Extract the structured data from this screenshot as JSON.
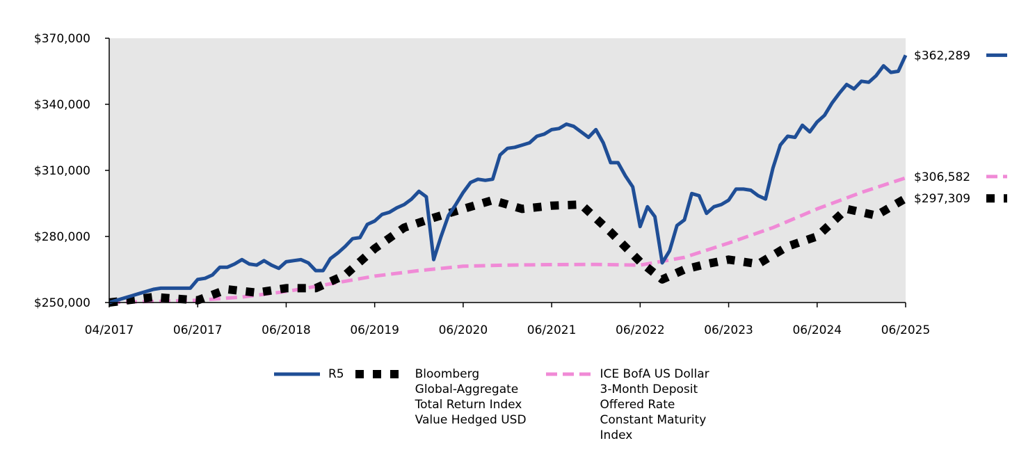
{
  "chart_data": {
    "type": "line",
    "title": "",
    "xlabel": "",
    "ylabel": "",
    "ylim": [
      250000,
      370000
    ],
    "y_ticks": [
      "$250,000",
      "$280,000",
      "$310,000",
      "$340,000",
      "$370,000"
    ],
    "y_tick_values": [
      250000,
      280000,
      310000,
      340000,
      370000
    ],
    "x_ticks": [
      "04/2017",
      "06/2017",
      "06/2018",
      "06/2019",
      "06/2020",
      "06/2021",
      "06/2022",
      "06/2023",
      "06/2024",
      "06/2025"
    ],
    "x_tick_values": [
      0,
      12,
      24,
      36,
      48,
      60,
      72,
      84,
      96,
      108
    ],
    "background_color": "#e6e6e6",
    "series": [
      {
        "name": "R5",
        "style": "solid",
        "color": "#1f4e96",
        "end_label": "$362,289",
        "x": [
          0,
          1,
          2,
          3,
          4,
          5,
          6,
          7,
          8,
          9,
          10,
          11,
          12,
          13,
          14,
          15,
          16,
          17,
          18,
          19,
          20,
          21,
          22,
          23,
          24,
          25,
          26,
          27,
          28,
          29,
          30,
          31,
          32,
          33,
          34,
          35,
          36,
          37,
          38,
          39,
          40,
          41,
          42,
          43,
          44,
          45,
          46,
          47,
          48,
          49,
          50,
          51,
          52,
          53,
          54,
          55,
          56,
          57,
          58,
          59,
          60,
          61,
          62,
          63,
          64,
          65,
          66,
          67,
          68,
          69,
          70,
          71,
          72,
          73,
          74,
          75,
          76,
          77,
          78,
          79,
          80,
          81,
          82,
          83,
          84,
          85,
          86,
          87,
          88,
          89,
          90,
          91,
          92,
          93,
          94,
          95,
          96,
          97,
          98,
          99,
          100,
          101,
          102,
          103,
          104,
          105,
          106,
          107,
          108
        ],
        "values": [
          250000,
          251000,
          252000,
          253000,
          254000,
          255000,
          256000,
          256500,
          256500,
          256500,
          256500,
          256500,
          260500,
          261000,
          262500,
          266000,
          266000,
          267500,
          269500,
          267500,
          267000,
          269000,
          267000,
          265500,
          268500,
          269000,
          269500,
          268000,
          264500,
          264500,
          270000,
          272500,
          275500,
          279000,
          279500,
          285500,
          287000,
          290000,
          291000,
          293000,
          294500,
          297000,
          300500,
          298000,
          269500,
          280000,
          289500,
          294500,
          300000,
          304500,
          306000,
          305500,
          306000,
          317000,
          320000,
          320500,
          321500,
          322500,
          325500,
          326500,
          328500,
          329000,
          331000,
          330000,
          327500,
          325000,
          328500,
          322500,
          313500,
          313500,
          307500,
          302500,
          284500,
          293500,
          289000,
          268000,
          273500,
          285000,
          287500,
          299500,
          298500,
          290500,
          293500,
          294500,
          296500,
          301500,
          301500,
          301000,
          298500,
          297000,
          311000,
          321500,
          325500,
          325000,
          330500,
          327500,
          332000,
          335000,
          340500,
          345000,
          349000,
          347000,
          350500,
          350000,
          353000,
          357500,
          354500,
          355000,
          362289
        ]
      },
      {
        "name": "Bloomberg\nGlobal-Aggregate\nTotal Return Index\nValue Hedged USD",
        "style": "square-dots",
        "color": "#000000",
        "end_label": "$297,309",
        "x": [
          0,
          6,
          12,
          16,
          20,
          24,
          28,
          32,
          36,
          40,
          44,
          48,
          52,
          56,
          60,
          64,
          68,
          72,
          75,
          78,
          81,
          84,
          88,
          92,
          96,
          100,
          104,
          108
        ],
        "values": [
          250000,
          252500,
          251000,
          256000,
          254500,
          256500,
          256500,
          262500,
          274500,
          284000,
          288500,
          292500,
          296500,
          292500,
          294000,
          294500,
          282000,
          268500,
          260500,
          265000,
          267500,
          269500,
          267500,
          275500,
          280000,
          292500,
          289500,
          297309
        ]
      },
      {
        "name": "ICE BofA US Dollar\n3-Month Deposit\nOffered Rate\nConstant Maturity\nIndex",
        "style": "dashed",
        "color": "#f08ad6",
        "end_label": "$306,582",
        "x": [
          0,
          6,
          12,
          18,
          24,
          30,
          36,
          42,
          48,
          54,
          60,
          66,
          72,
          78,
          84,
          90,
          96,
          102,
          108
        ],
        "values": [
          250000,
          250500,
          251000,
          252500,
          255000,
          258500,
          262000,
          264500,
          266500,
          267000,
          267200,
          267300,
          267000,
          270500,
          277000,
          284000,
          292500,
          300000,
          306582
        ]
      }
    ]
  }
}
